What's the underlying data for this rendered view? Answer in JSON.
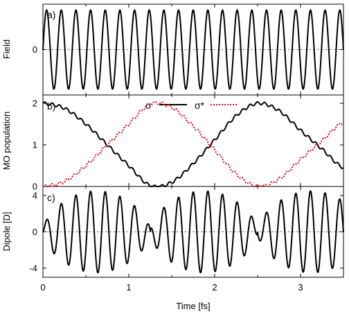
{
  "chart_data": [
    {
      "type": "line",
      "panel_label": "a)",
      "xlabel": "",
      "ylabel": "Field",
      "xlim": [
        0,
        3.5
      ],
      "ylim": [
        -1.15,
        1.15
      ],
      "yticks": [
        0
      ],
      "ytick_labels": [
        "0"
      ],
      "zero_line": "dashed",
      "series": [
        {
          "color": "#000000",
          "style": "solid",
          "description_function": "sine",
          "params": {
            "amplitude": 1.0,
            "cycles_in_range": 20.5,
            "phase": 0
          }
        }
      ]
    },
    {
      "type": "line",
      "panel_label": "b)",
      "xlabel": "",
      "ylabel": "MO population",
      "xlim": [
        0,
        3.5
      ],
      "ylim": [
        0,
        2.2
      ],
      "yticks": [
        0,
        1,
        2
      ],
      "ytick_labels": [
        "0",
        "1",
        "2"
      ],
      "legend_position": "top-center",
      "series": [
        {
          "name": "σ",
          "color": "#000000",
          "style": "solid",
          "x": [
            0,
            0.25,
            0.5,
            0.75,
            1.0,
            1.25,
            1.5,
            1.75,
            2.0,
            2.25,
            2.5,
            2.75,
            3.0,
            3.25,
            3.5
          ],
          "y": [
            2.0,
            1.88,
            1.5,
            1.0,
            0.5,
            0.02,
            0.1,
            0.55,
            1.12,
            1.7,
            2.0,
            1.82,
            1.35,
            0.9,
            0.45
          ]
        },
        {
          "name": "σ*",
          "color": "#e8000b",
          "style": "dotted",
          "x": [
            0,
            0.25,
            0.5,
            0.75,
            1.0,
            1.25,
            1.5,
            1.75,
            2.0,
            2.25,
            2.5,
            2.75,
            3.0,
            3.25,
            3.5
          ],
          "y": [
            0.0,
            0.12,
            0.5,
            1.0,
            1.5,
            1.98,
            1.9,
            1.45,
            0.88,
            0.3,
            0.0,
            0.18,
            0.65,
            1.1,
            1.55
          ]
        }
      ]
    },
    {
      "type": "line",
      "panel_label": "c)",
      "xlabel": "Time [fs]",
      "ylabel": "Dipole [D]",
      "xlim": [
        0,
        3.5
      ],
      "ylim": [
        -5,
        5
      ],
      "yticks": [
        -4,
        0,
        4
      ],
      "ytick_labels": [
        "-4",
        "0",
        "4"
      ],
      "xticks": [
        0,
        1,
        2,
        3
      ],
      "xtick_labels": [
        "0",
        "1",
        "2",
        "3"
      ],
      "zero_line": "dashed",
      "series": [
        {
          "color": "#000000",
          "style": "solid",
          "description_function": "amplitude-modulated sine",
          "params": {
            "peak_amplitude": 4.5,
            "carrier_cycles_in_range": 20.5,
            "envelope_nodes": [
              0,
              1.25,
              2.5
            ]
          }
        }
      ]
    }
  ]
}
